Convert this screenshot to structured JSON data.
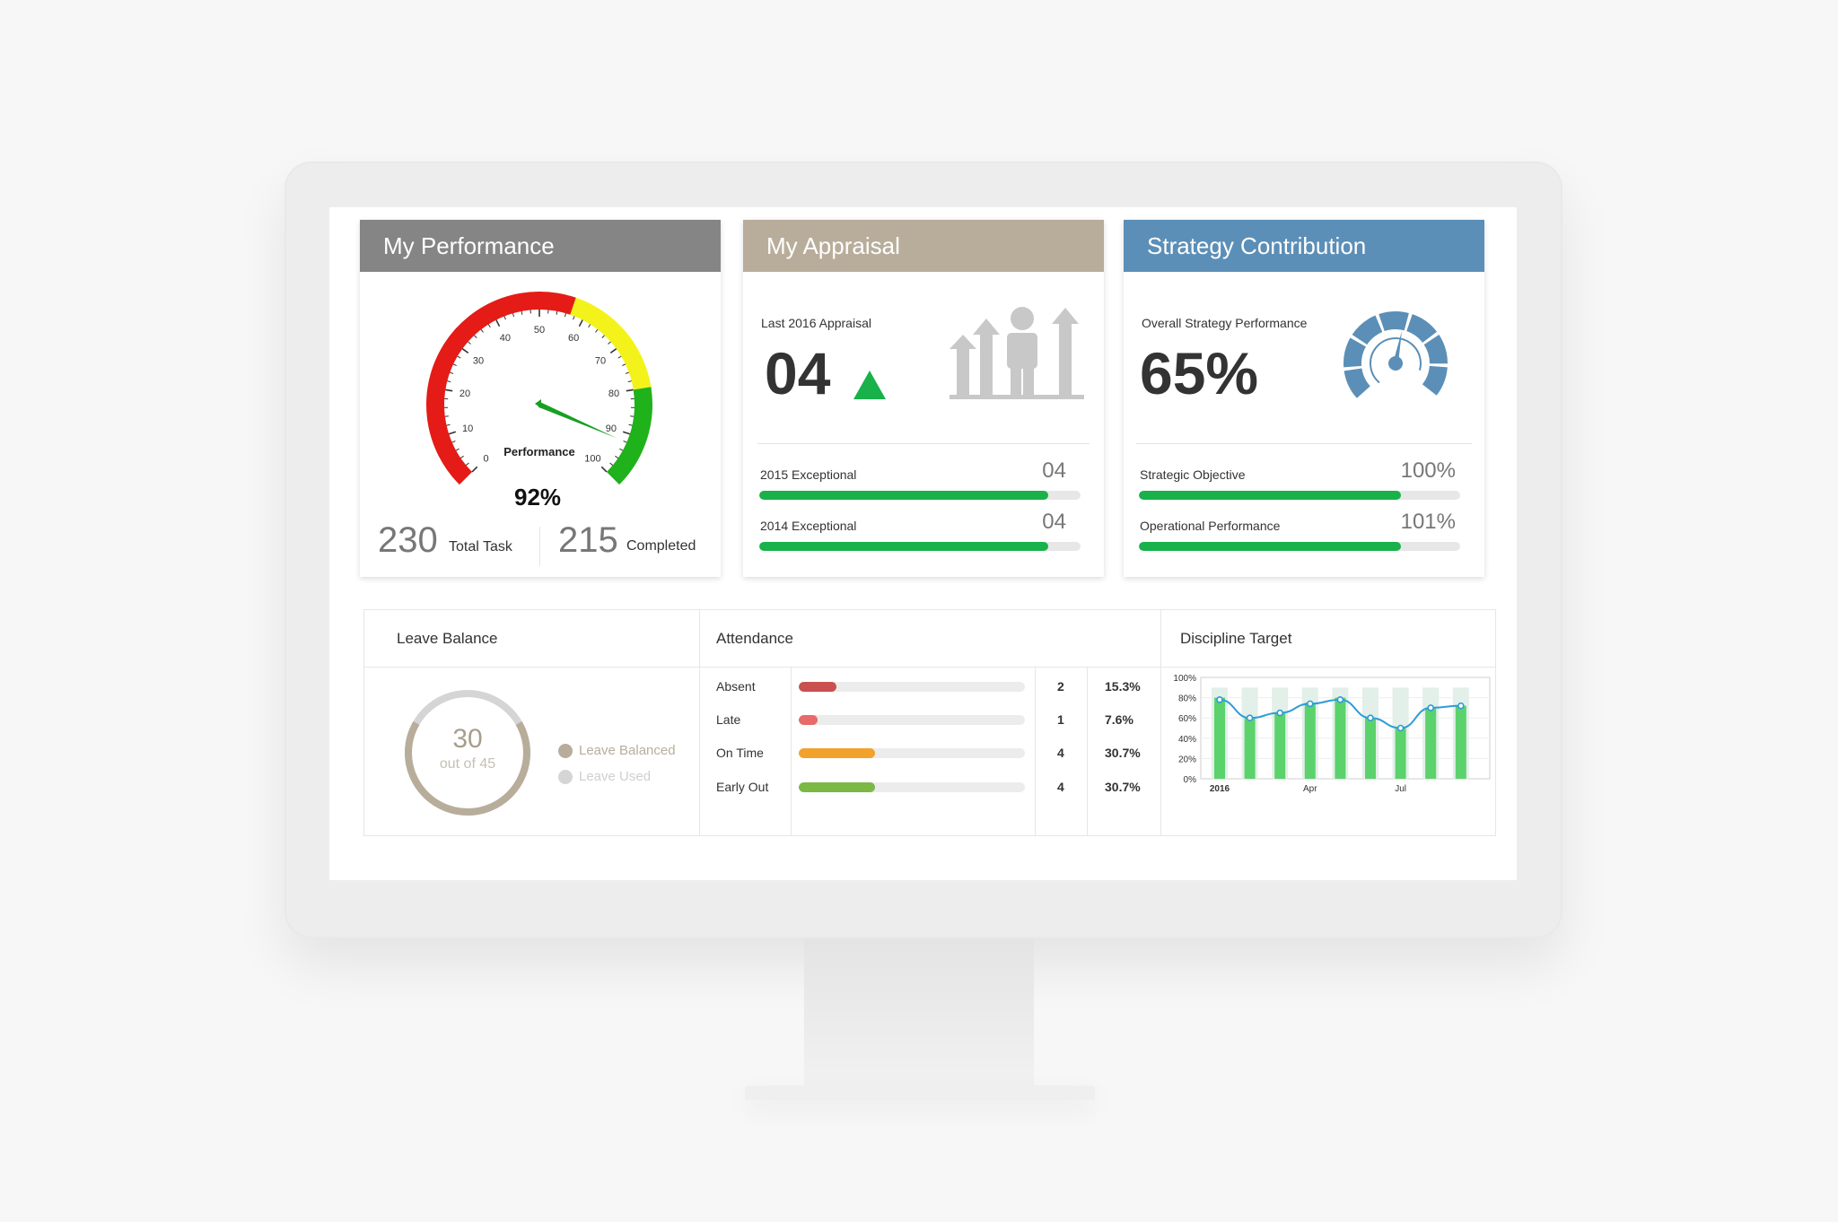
{
  "performance": {
    "title": "My Performance",
    "gauge": {
      "label": "Performance",
      "value_text": "92%",
      "value": 92,
      "ticks": [
        "0",
        "10",
        "20",
        "30",
        "40",
        "50",
        "60",
        "70",
        "80",
        "90",
        "100"
      ]
    },
    "total_task": "230",
    "total_task_label": "Total Task",
    "completed": "215",
    "completed_label": "Completed"
  },
  "appraisal": {
    "title": "My Appraisal",
    "subtitle": "Last 2016 Appraisal",
    "value": "04",
    "rows": [
      {
        "label": "2015 Exceptional",
        "value": "04",
        "fill": 0.9
      },
      {
        "label": "2014 Exceptional",
        "value": "04",
        "fill": 0.9
      }
    ]
  },
  "strategy": {
    "title": "Strategy Contribution",
    "subtitle": "Overall Strategy Performance",
    "value": "65%",
    "rows": [
      {
        "label": "Strategic Objective",
        "value": "100%",
        "fill": 0.815
      },
      {
        "label": "Operational Performance",
        "value": "101%",
        "fill": 0.815
      }
    ]
  },
  "leave": {
    "title": "Leave Balance",
    "number": "30",
    "of_text": "out of 45",
    "legend_balanced": "Leave Balanced",
    "legend_used": "Leave Used",
    "balanced": 30,
    "total": 45
  },
  "attendance": {
    "title": "Attendance",
    "rows": [
      {
        "label": "Absent",
        "count": "2",
        "pct": "15.3%",
        "fill": 0.153,
        "color": "#c9504f"
      },
      {
        "label": "Late",
        "count": "1",
        "pct": "7.6%",
        "fill": 0.076,
        "color": "#e86a6a"
      },
      {
        "label": "On Time",
        "count": "4",
        "pct": "30.7%",
        "fill": 0.307,
        "color": "#f2a12b"
      },
      {
        "label": "Early Out",
        "count": "4",
        "pct": "30.7%",
        "fill": 0.307,
        "color": "#7cb845"
      }
    ]
  },
  "discipline": {
    "title": "Discipline Target"
  },
  "chart_data": {
    "type": "bar",
    "title": "",
    "ylim": [
      0,
      100
    ],
    "yticks": [
      "0%",
      "20%",
      "40%",
      "60%",
      "80%",
      "100%"
    ],
    "xticks": [
      "2016",
      "Apr",
      "Jul"
    ],
    "categories": [
      "",
      "",
      "",
      "",
      "",
      "",
      "",
      "",
      ""
    ],
    "series": [
      {
        "values": [
          90,
          90,
          90,
          90,
          90,
          90,
          90,
          90,
          90
        ]
      },
      {
        "values": [
          80,
          60,
          65,
          75,
          80,
          60,
          50,
          70,
          72
        ]
      },
      {
        "values": [
          78,
          60,
          65,
          74,
          78,
          60,
          50,
          70,
          72
        ]
      }
    ],
    "colors": {
      "target": "#e3efe9",
      "bar": "#5cd26c",
      "line": "#2c9cd9"
    }
  }
}
